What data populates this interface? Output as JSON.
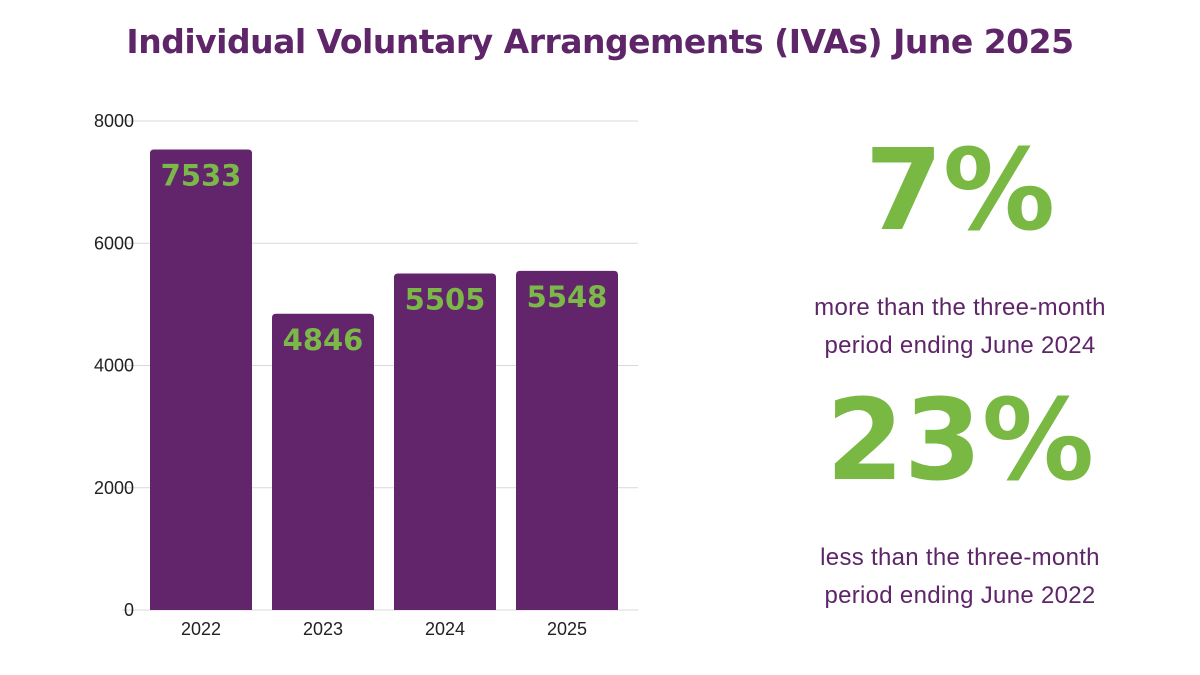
{
  "title": "Individual Voluntary Arrangements (IVAs) June 2025",
  "colors": {
    "title": "#5e2568",
    "bar": "#62256b",
    "bar_label": "#7bb848",
    "stat_big": "#78b843",
    "stat_text": "#5e2568",
    "axis_text": "#222222",
    "grid": "#d9d9d9"
  },
  "chart_data": {
    "type": "bar",
    "categories": [
      "2022",
      "2023",
      "2024",
      "2025"
    ],
    "values": [
      7533,
      4846,
      5505,
      5548
    ],
    "ylim": [
      0,
      8000
    ],
    "yticks": [
      0,
      2000,
      4000,
      6000,
      8000
    ],
    "grid": true,
    "data_labels": true,
    "legend": "none"
  },
  "stats": [
    {
      "value": "7%",
      "description_line1": "more than the three-month",
      "description_line2": "period ending June 2024"
    },
    {
      "value": "23%",
      "description_line1": "less than the three-month",
      "description_line2": "period ending June 2022"
    }
  ]
}
